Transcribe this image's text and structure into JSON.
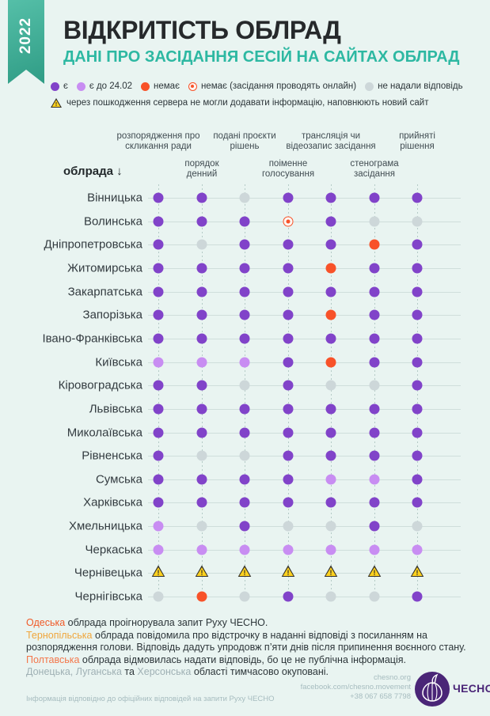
{
  "ribbon": {
    "year": "2022"
  },
  "header": {
    "title": "ВІДКРИТІСТЬ ОБЛРАД",
    "subtitle": "ДАНІ ПРО ЗАСІДАННЯ СЕСІЙ НА САЙТАХ ОБЛРАД"
  },
  "legend": {
    "items": [
      {
        "code": "p",
        "label": "є"
      },
      {
        "code": "l",
        "label": "є до 24.02"
      },
      {
        "code": "r",
        "label": "немає"
      },
      {
        "code": "o",
        "label": "немає (засідання проводять онлайн)"
      },
      {
        "code": "g",
        "label": "не надали відповідь"
      }
    ],
    "warning_note": "через пошкодження сервера не могли додавати інформацію, наповнюють новий сайт"
  },
  "table": {
    "row_axis_label": "облрада ↓"
  },
  "chart_data": {
    "type": "table",
    "title": "ВІДКРИТІСТЬ ОБЛРАД",
    "subtitle": "ДАНІ ПРО ЗАСІДАННЯ СЕСІЙ НА САЙТАХ ОБЛРАД",
    "columns": [
      "розпорядження про скликання ради",
      "порядок денний",
      "подані проєкти рішень",
      "поіменне голосування",
      "трансляція чи відеозапис засідання",
      "стенограма засідання",
      "прийняті рішення"
    ],
    "code_legend": {
      "p": "є",
      "l": "є до 24.02",
      "r": "немає",
      "o": "немає (засідання проводять онлайн)",
      "g": "не надали відповідь",
      "w": "через пошкодження сервера не могли додавати інформацію, наповнюють новий сайт"
    },
    "rows": [
      {
        "region": "Вінницька",
        "cells": [
          "p",
          "p",
          "g",
          "p",
          "p",
          "p",
          "p"
        ]
      },
      {
        "region": "Волинська",
        "cells": [
          "p",
          "p",
          "p",
          "o",
          "p",
          "g",
          "g"
        ]
      },
      {
        "region": "Дніпропетровська",
        "cells": [
          "p",
          "g",
          "p",
          "p",
          "p",
          "r",
          "p"
        ]
      },
      {
        "region": "Житомирська",
        "cells": [
          "p",
          "p",
          "p",
          "p",
          "r",
          "p",
          "p"
        ]
      },
      {
        "region": "Закарпатська",
        "cells": [
          "p",
          "p",
          "p",
          "p",
          "p",
          "p",
          "p"
        ]
      },
      {
        "region": "Запорізька",
        "cells": [
          "p",
          "p",
          "p",
          "p",
          "r",
          "p",
          "p"
        ]
      },
      {
        "region": "Івано-Франківська",
        "cells": [
          "p",
          "p",
          "p",
          "p",
          "p",
          "p",
          "p"
        ]
      },
      {
        "region": "Київська",
        "cells": [
          "l",
          "l",
          "l",
          "p",
          "r",
          "p",
          "p"
        ]
      },
      {
        "region": "Кіровоградська",
        "cells": [
          "p",
          "p",
          "g",
          "p",
          "g",
          "g",
          "p"
        ]
      },
      {
        "region": "Львівська",
        "cells": [
          "p",
          "p",
          "p",
          "p",
          "p",
          "p",
          "p"
        ]
      },
      {
        "region": "Миколаївська",
        "cells": [
          "p",
          "p",
          "p",
          "p",
          "p",
          "p",
          "p"
        ]
      },
      {
        "region": "Рівненська",
        "cells": [
          "p",
          "g",
          "g",
          "p",
          "p",
          "p",
          "p"
        ]
      },
      {
        "region": "Сумська",
        "cells": [
          "p",
          "p",
          "p",
          "p",
          "l",
          "l",
          "p"
        ]
      },
      {
        "region": "Харківська",
        "cells": [
          "p",
          "p",
          "p",
          "p",
          "p",
          "p",
          "p"
        ]
      },
      {
        "region": "Хмельницька",
        "cells": [
          "l",
          "g",
          "p",
          "g",
          "g",
          "p",
          "g"
        ]
      },
      {
        "region": "Черкаська",
        "cells": [
          "l",
          "l",
          "l",
          "l",
          "l",
          "l",
          "l"
        ]
      },
      {
        "region": "Чернівецька",
        "cells": [
          "w",
          "w",
          "w",
          "w",
          "w",
          "w",
          "w"
        ]
      },
      {
        "region": "Чернігівська",
        "cells": [
          "g",
          "r",
          "g",
          "p",
          "g",
          "g",
          "p"
        ]
      }
    ]
  },
  "footnotes": [
    {
      "segments": [
        {
          "t": "Одеська",
          "c": "fn-red"
        },
        {
          "t": " облрада проігнорувала запит Руху ЧЕСНО.",
          "c": ""
        }
      ]
    },
    {
      "segments": [
        {
          "t": "Тернопільська",
          "c": "fn-amber"
        },
        {
          "t": " облрада повідомила про відстрочку в наданні відповіді з посиланням на розпорядження голови. Відповідь дадуть упродовж п’яти днів після припинення воєнного стану.",
          "c": ""
        }
      ]
    },
    {
      "segments": [
        {
          "t": "Полтавська",
          "c": "fn-orange"
        },
        {
          "t": " облрада відмовилась надати відповідь, бо це не публічна інформація.",
          "c": ""
        }
      ]
    },
    {
      "segments": [
        {
          "t": "Донецька, Луганська",
          "c": "fn-muted"
        },
        {
          "t": " та ",
          "c": ""
        },
        {
          "t": "Херсонська",
          "c": "fn-muted"
        },
        {
          "t": " області тимчасово окуповані.",
          "c": ""
        }
      ]
    }
  ],
  "footer": {
    "note": "Інформація відповідно до офіційних відповідей на запити Руху ЧЕСНО",
    "contacts": [
      "chesno.org",
      "facebook.com/chesno.movement",
      "+38 067 658 7798"
    ],
    "logo_text": "ЧЕСНО"
  },
  "colors": {
    "background": "#e9f4f1",
    "accent_teal": "#2db8a2",
    "ribbon_teal": "#3aab93",
    "present_purple": "#8143c9",
    "present_before_purple": "#c88df2",
    "absent_red": "#f85229",
    "no_answer_gray": "#cdd7d9",
    "warning_yellow": "#ffd21f",
    "logo_purple": "#4a2577"
  }
}
